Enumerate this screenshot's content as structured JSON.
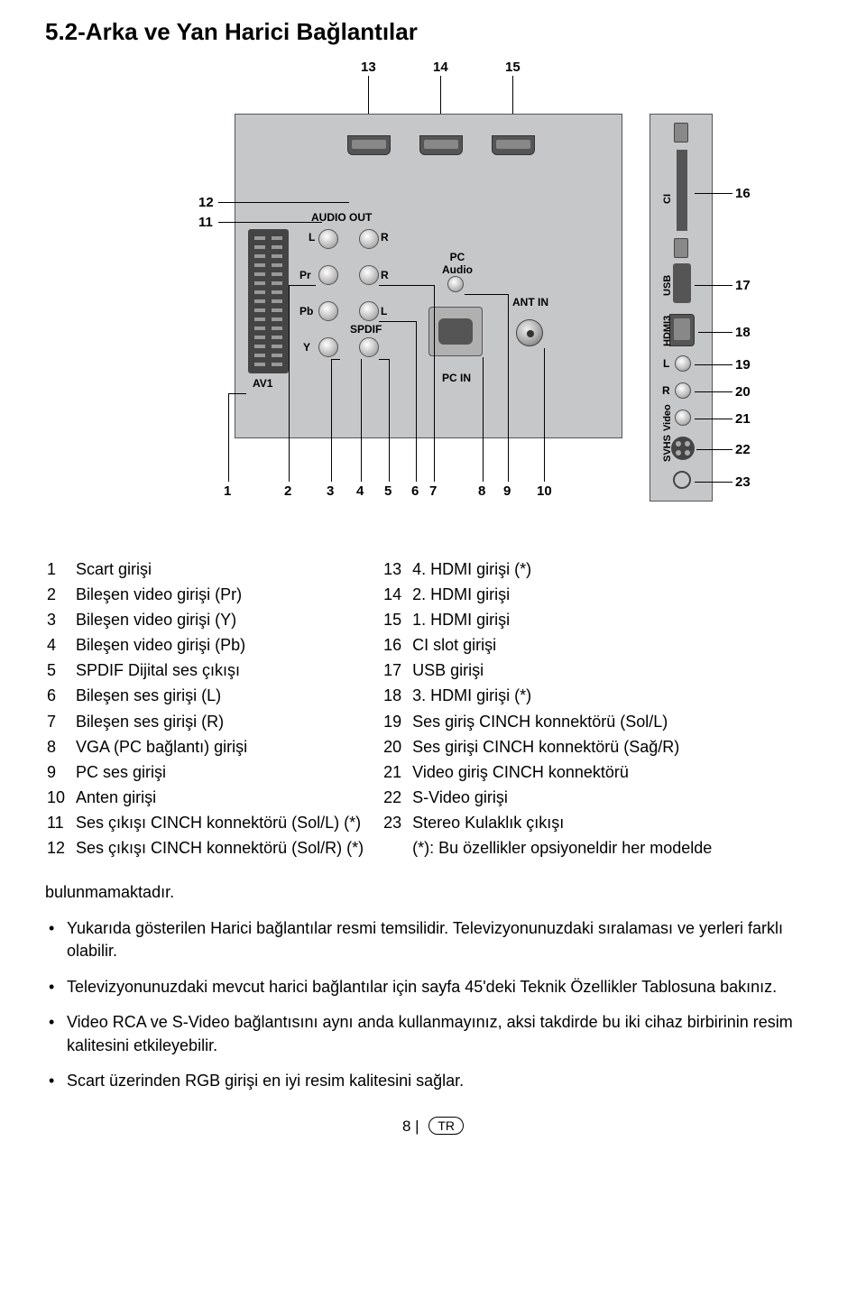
{
  "heading": "5.2-Arka ve Yan Harici Bağlantılar",
  "diagram": {
    "background_color": "#c6c7c9",
    "top_ports": [
      "HDMI4",
      "HDMI2",
      "HDMI1"
    ],
    "top_nums": [
      "13",
      "14",
      "15"
    ],
    "left_nums_upper": [
      "12",
      "11"
    ],
    "right_nums": [
      "16",
      "17",
      "18",
      "19",
      "20",
      "21",
      "22",
      "23"
    ],
    "bottom_nums": [
      "1",
      "2",
      "3",
      "4",
      "5",
      "6",
      "7",
      "8",
      "9",
      "10"
    ],
    "labels": {
      "audio_out": "AUDIO OUT",
      "L": "L",
      "R": "R",
      "Pr": "Pr",
      "Pb": "Pb",
      "Y": "Y",
      "spdif": "SPDIF",
      "av1": "AV1",
      "pc_audio": "PC\nAudio",
      "ant_in": "ANT IN",
      "pc_in": "PC IN",
      "ci": "CI",
      "usb": "USB",
      "hdmi3": "HDMI3",
      "svhs": "SVHS",
      "video": "Video"
    }
  },
  "left_list": [
    {
      "n": "1",
      "t": "Scart girişi"
    },
    {
      "n": "2",
      "t": "Bileşen video girişi (Pr)"
    },
    {
      "n": "3",
      "t": "Bileşen video girişi (Y)"
    },
    {
      "n": "4",
      "t": "Bileşen video girişi (Pb)"
    },
    {
      "n": "5",
      "t": "SPDIF Dijital ses çıkışı"
    },
    {
      "n": "6",
      "t": "Bileşen ses girişi (L)"
    },
    {
      "n": "7",
      "t": "Bileşen ses girişi (R)"
    },
    {
      "n": "8",
      "t": "VGA (PC bağlantı) girişi"
    },
    {
      "n": "9",
      "t": "PC ses girişi"
    },
    {
      "n": "10",
      "t": "Anten girişi"
    },
    {
      "n": "11",
      "t": "Ses çıkışı CINCH konnektörü (Sol/L) (*)"
    },
    {
      "n": "12",
      "t": "Ses çıkışı CINCH konnektörü (Sol/R) (*)"
    }
  ],
  "right_list": [
    {
      "n": "13",
      "t": "4. HDMI girişi (*)"
    },
    {
      "n": "14",
      "t": "2. HDMI girişi"
    },
    {
      "n": "15",
      "t": "1. HDMI girişi"
    },
    {
      "n": "16",
      "t": "CI slot girişi"
    },
    {
      "n": "17",
      "t": "USB girişi"
    },
    {
      "n": "18",
      "t": "3. HDMI girişi (*)"
    },
    {
      "n": "19",
      "t": "Ses giriş CINCH konnektörü (Sol/L)"
    },
    {
      "n": "20",
      "t": "Ses girişi CINCH konnektörü (Sağ/R)"
    },
    {
      "n": "21",
      "t": "Video giriş CINCH konnektörü"
    },
    {
      "n": "22",
      "t": "S-Video girişi"
    },
    {
      "n": "23",
      "t": "Stereo Kulaklık çıkışı"
    },
    {
      "n": "",
      "t": "(*): Bu özellikler opsiyoneldir her modelde"
    }
  ],
  "bottom_lead": "bulunmamaktadır.",
  "bullets": [
    "Yukarıda gösterilen Harici bağlantılar resmi temsilidir. Televizyonunuzdaki sıralaması ve yerleri farklı olabilir.",
    "Televizyonunuzdaki mevcut harici bağlantılar için sayfa 45'deki Teknik Özellikler Tablosuna bakınız.",
    "Video RCA ve S-Video bağlantısını aynı anda kullanmayınız, aksi takdirde bu iki cihaz birbirinin resim kalitesini etkileyebilir.",
    "Scart üzerinden RGB girişi en iyi resim kalitesini sağlar."
  ],
  "footer": {
    "page": "8 |",
    "lang": "TR"
  }
}
